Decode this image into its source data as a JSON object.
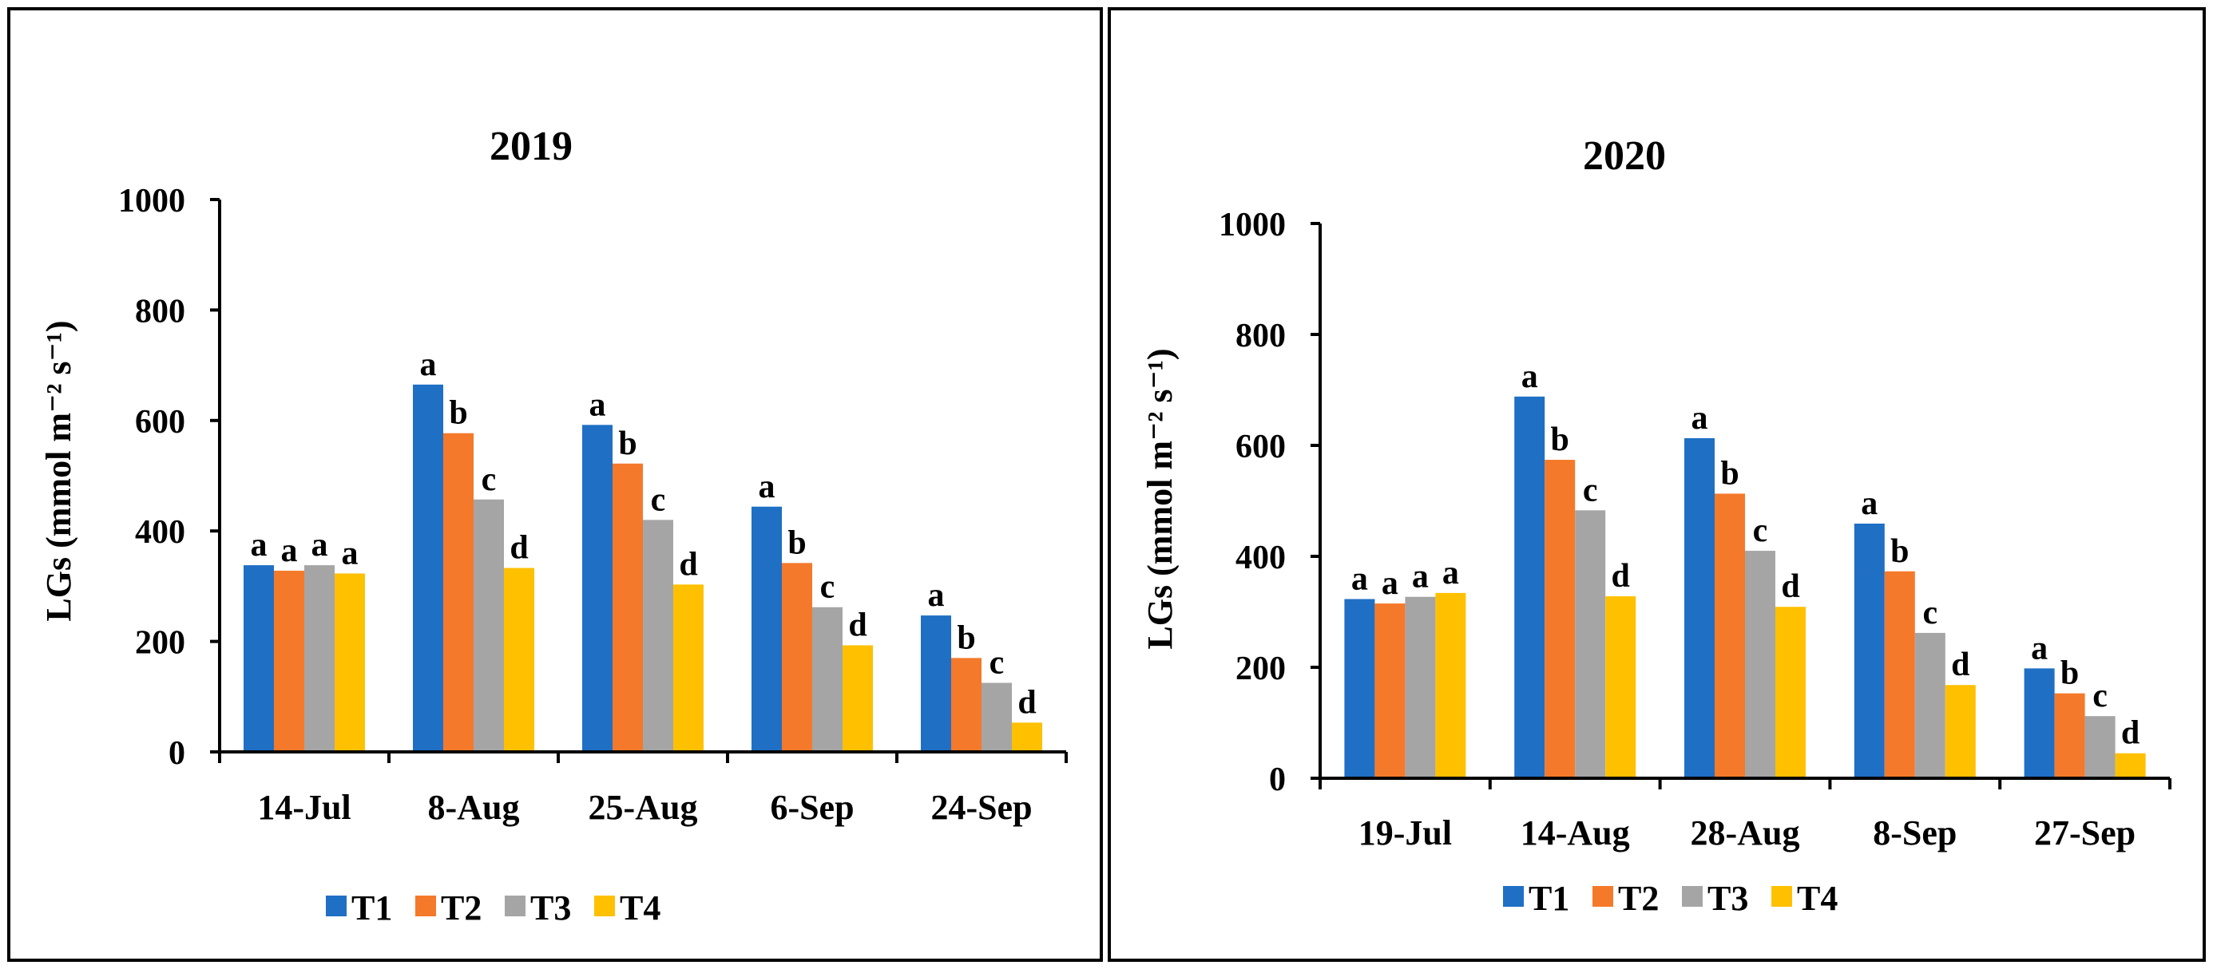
{
  "charts": [
    {
      "chart_data": {
        "type": "bar",
        "title": "2019",
        "xlabel": "",
        "ylabel": "LGs (mmol m⁻² s⁻¹)",
        "ylim": [
          0,
          1000
        ],
        "yticks": [
          "0",
          "200",
          "400",
          "600",
          "800",
          "1000"
        ],
        "categories": [
          "14-Jul",
          "8-Aug",
          "25-Aug",
          "6-Sep",
          "24-Sep"
        ],
        "series": [
          {
            "name": "T1",
            "color": "#1f6fc5",
            "values": [
              338,
              665,
              592,
              444,
              247
            ],
            "letters": [
              "a",
              "a",
              "a",
              "a",
              "a"
            ]
          },
          {
            "name": "T2",
            "color": "#f5792a",
            "values": [
              328,
              577,
              522,
              342,
              170
            ],
            "letters": [
              "a",
              "b",
              "b",
              "b",
              "b"
            ]
          },
          {
            "name": "T3",
            "color": "#a5a5a5",
            "values": [
              338,
              457,
              420,
              262,
              125
            ],
            "letters": [
              "a",
              "c",
              "c",
              "c",
              "c"
            ]
          },
          {
            "name": "T4",
            "color": "#ffc000",
            "values": [
              323,
              333,
              303,
              193,
              53
            ],
            "letters": [
              "a",
              "d",
              "d",
              "d",
              "d"
            ]
          }
        ],
        "legend_position": "bottom"
      }
    },
    {
      "chart_data": {
        "type": "bar",
        "title": "2020",
        "xlabel": "",
        "ylabel": "LGs (mmol m⁻² s⁻¹)",
        "ylim": [
          0,
          1000
        ],
        "yticks": [
          "0",
          "200",
          "400",
          "600",
          "800",
          "1000"
        ],
        "categories": [
          "19-Jul",
          "14-Aug",
          "28-Aug",
          "8-Sep",
          "27-Sep"
        ],
        "series": [
          {
            "name": "T1",
            "color": "#1f6fc5",
            "values": [
              323,
              688,
              613,
              459,
              198
            ],
            "letters": [
              "a",
              "a",
              "a",
              "a",
              "a"
            ]
          },
          {
            "name": "T2",
            "color": "#f5792a",
            "values": [
              315,
              574,
              513,
              373,
              153
            ],
            "letters": [
              "a",
              "b",
              "b",
              "b",
              "b"
            ]
          },
          {
            "name": "T3",
            "color": "#a5a5a5",
            "values": [
              327,
              483,
              410,
              262,
              112
            ],
            "letters": [
              "a",
              "c",
              "c",
              "c",
              "c"
            ]
          },
          {
            "name": "T4",
            "color": "#ffc000",
            "values": [
              334,
              328,
              309,
              168,
              45
            ],
            "letters": [
              "a",
              "d",
              "d",
              "d",
              "d"
            ]
          }
        ],
        "legend_position": "bottom"
      }
    }
  ]
}
